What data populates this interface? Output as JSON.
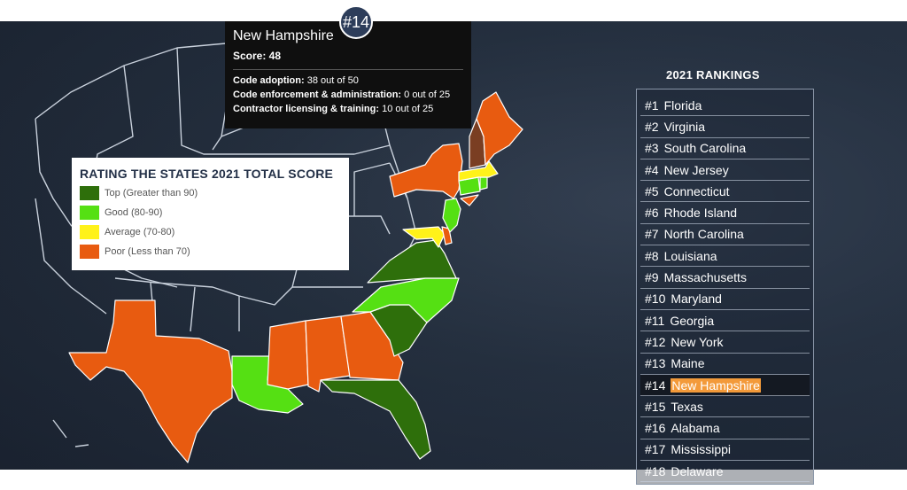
{
  "tooltip": {
    "rank_badge": "#14",
    "state": "New Hampshire",
    "score_label": "Score: 48",
    "lines": [
      {
        "label": "Code adoption:",
        "value": "38 out of 50"
      },
      {
        "label": "Code enforcement & administration:",
        "value": "0 out of 25"
      },
      {
        "label": "Contractor licensing & training:",
        "value": "10 out of 25"
      }
    ]
  },
  "legend": {
    "title": "RATING THE STATES 2021 TOTAL SCORE",
    "items": [
      {
        "label": "Top (Greater than 90)",
        "color": "#2e6f0b"
      },
      {
        "label": "Good (80-90)",
        "color": "#55e013"
      },
      {
        "label": "Average (70-80)",
        "color": "#fff21a"
      },
      {
        "label": "Poor (Less than 70)",
        "color": "#e85b10"
      }
    ]
  },
  "rankings": {
    "title": "2021 RANKINGS",
    "active_index": 13,
    "items": [
      {
        "rank": "#1",
        "name": "Florida"
      },
      {
        "rank": "#2",
        "name": "Virginia"
      },
      {
        "rank": "#3",
        "name": "South Carolina"
      },
      {
        "rank": "#4",
        "name": "New Jersey"
      },
      {
        "rank": "#5",
        "name": "Connecticut"
      },
      {
        "rank": "#6",
        "name": "Rhode Island"
      },
      {
        "rank": "#7",
        "name": "North Carolina"
      },
      {
        "rank": "#8",
        "name": "Louisiana"
      },
      {
        "rank": "#9",
        "name": "Massachusetts"
      },
      {
        "rank": "#10",
        "name": "Maryland"
      },
      {
        "rank": "#11",
        "name": "Georgia"
      },
      {
        "rank": "#12",
        "name": "New York"
      },
      {
        "rank": "#13",
        "name": "Maine"
      },
      {
        "rank": "#14",
        "name": "New Hampshire"
      },
      {
        "rank": "#15",
        "name": "Texas"
      },
      {
        "rank": "#16",
        "name": "Alabama"
      },
      {
        "rank": "#17",
        "name": "Mississippi"
      },
      {
        "rank": "#18",
        "name": "Delaware"
      }
    ]
  },
  "map_colors": {
    "top": "#2e6f0b",
    "good": "#55e013",
    "average": "#fff21a",
    "poor": "#e85b10",
    "selected": "#7a3e22"
  }
}
